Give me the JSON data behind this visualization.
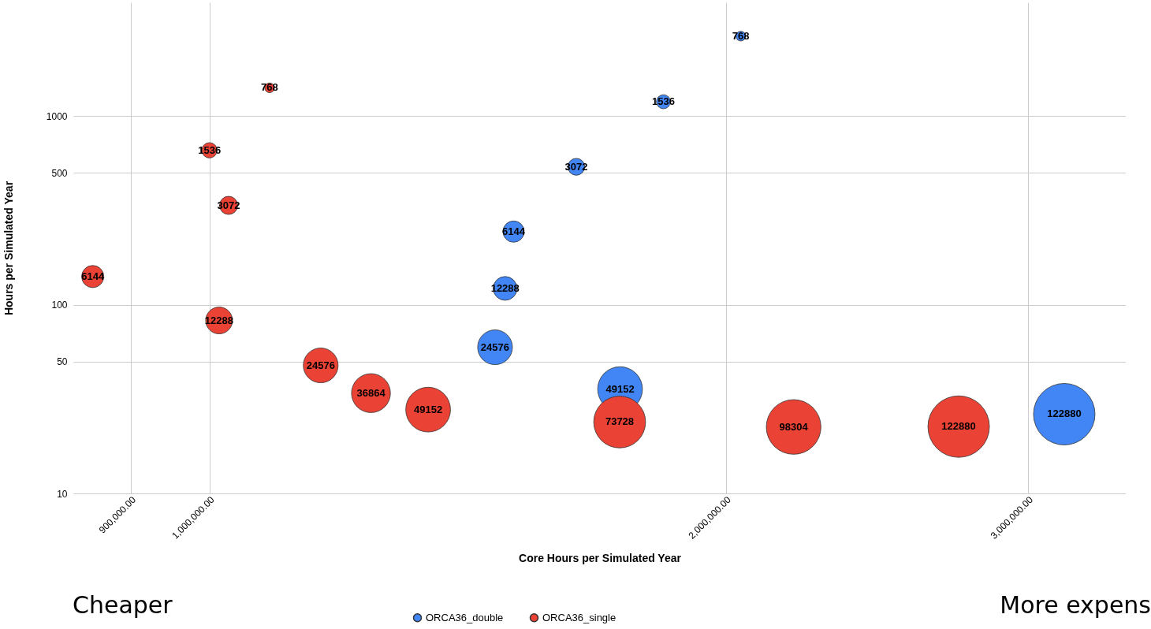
{
  "chart_data": {
    "type": "bubble",
    "xlabel": "Core Hours per Simulated Year",
    "ylabel": "Hours per Simulated Year",
    "log": "xy",
    "grid": true,
    "legend": "bottom",
    "marker": "circle",
    "xlim": [
      833000,
      3420000
    ],
    "xticks": [
      {
        "value": 900000,
        "label": "900,000.00"
      },
      {
        "value": 1000000,
        "label": "1,000,000.00"
      },
      {
        "value": 2000000,
        "label": "2,000,000.00"
      },
      {
        "value": 3000000,
        "label": "3,000,000.00"
      }
    ],
    "ylim": [
      10,
      4000
    ],
    "yticks": [
      10,
      50,
      100,
      500,
      1000
    ],
    "annotations": [
      "Cheaper",
      "More expens",
      {
        "text": "768",
        "x": 2040000,
        "y": 2650
      },
      {
        "text": "1536",
        "x": 1839000,
        "y": 1190
      },
      {
        "text": "3072",
        "x": 1636000,
        "y": 538
      },
      {
        "text": "6144",
        "x": 1504000,
        "y": 244
      },
      {
        "text": "12288",
        "x": 1487000,
        "y": 122
      },
      {
        "text": "24576",
        "x": 1467000,
        "y": 59.5
      },
      {
        "text": "49152",
        "x": 1735000,
        "y": 35.7
      },
      {
        "text": "122880",
        "x": 3149000,
        "y": 26.3
      },
      {
        "text": "768",
        "x": 1084000,
        "y": 1410
      },
      {
        "text": "1536",
        "x": 1000000,
        "y": 658
      },
      {
        "text": "3072",
        "x": 1026000,
        "y": 336
      },
      {
        "text": "6144",
        "x": 855000,
        "y": 141
      },
      {
        "text": "12288",
        "x": 1013000,
        "y": 82.5
      },
      {
        "text": "24576",
        "x": 1161000,
        "y": 47.7
      },
      {
        "text": "36864",
        "x": 1242000,
        "y": 34
      },
      {
        "text": "49152",
        "x": 1341000,
        "y": 27.8
      },
      {
        "text": "73728",
        "x": 1734000,
        "y": 23.9
      },
      {
        "text": "98304",
        "x": 2190000,
        "y": 22.5
      },
      {
        "text": "122880",
        "x": 2733000,
        "y": 22.6
      }
    ],
    "series": [
      {
        "name": "ORCA36_double",
        "color": "#4285f4",
        "x": [
          2040000,
          1839000,
          1636000,
          1504000,
          1487000,
          1467000,
          1735000,
          3149000
        ],
        "values": [
          2650,
          1190,
          538,
          244,
          122,
          59.5,
          35.7,
          26.3
        ],
        "sizes": [
          0.025,
          0.052,
          0.075,
          0.12,
          0.15,
          0.32,
          0.53,
          1
        ]
      },
      {
        "name": "ORCA36_single",
        "color": "#ea4335",
        "x": [
          1084000,
          1000000,
          1026000,
          855000,
          1013000,
          1161000,
          1242000,
          1341000,
          1734000,
          2190000,
          2733000
        ],
        "values": [
          1410,
          658,
          336,
          141,
          82.5,
          47.7,
          34,
          27.8,
          23.9,
          22.5,
          22.6
        ],
        "sizes": [
          0.025,
          0.062,
          0.087,
          0.13,
          0.19,
          0.32,
          0.4,
          0.53,
          0.71,
          0.79,
          1
        ]
      }
    ]
  }
}
